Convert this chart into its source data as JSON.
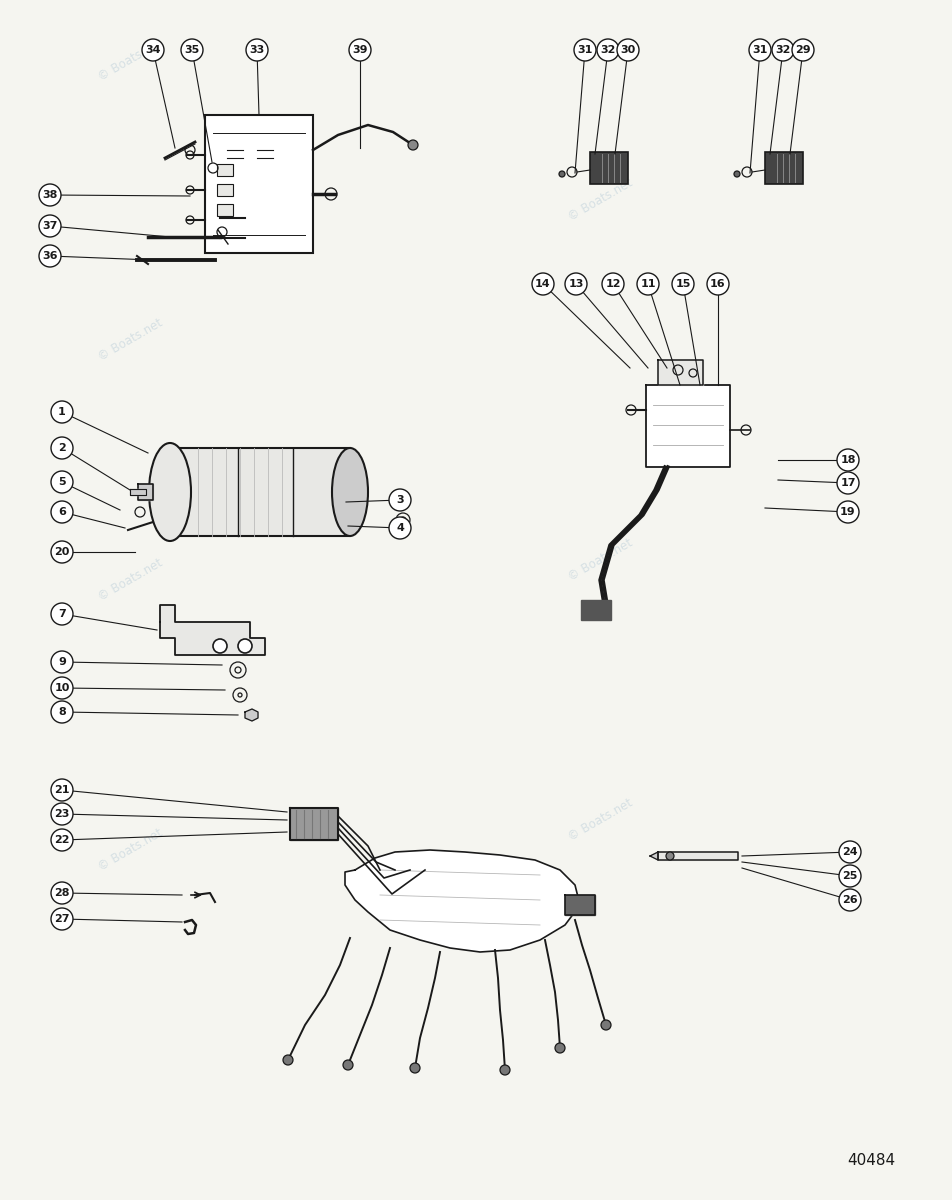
{
  "background_color": "#f5f5f0",
  "watermark_text": "© Boats.net",
  "part_number": "40484",
  "line_color": "#1a1a1a",
  "light_fill": "#e8e8e5",
  "medium_fill": "#cccccc",
  "dark_fill": "#888888"
}
